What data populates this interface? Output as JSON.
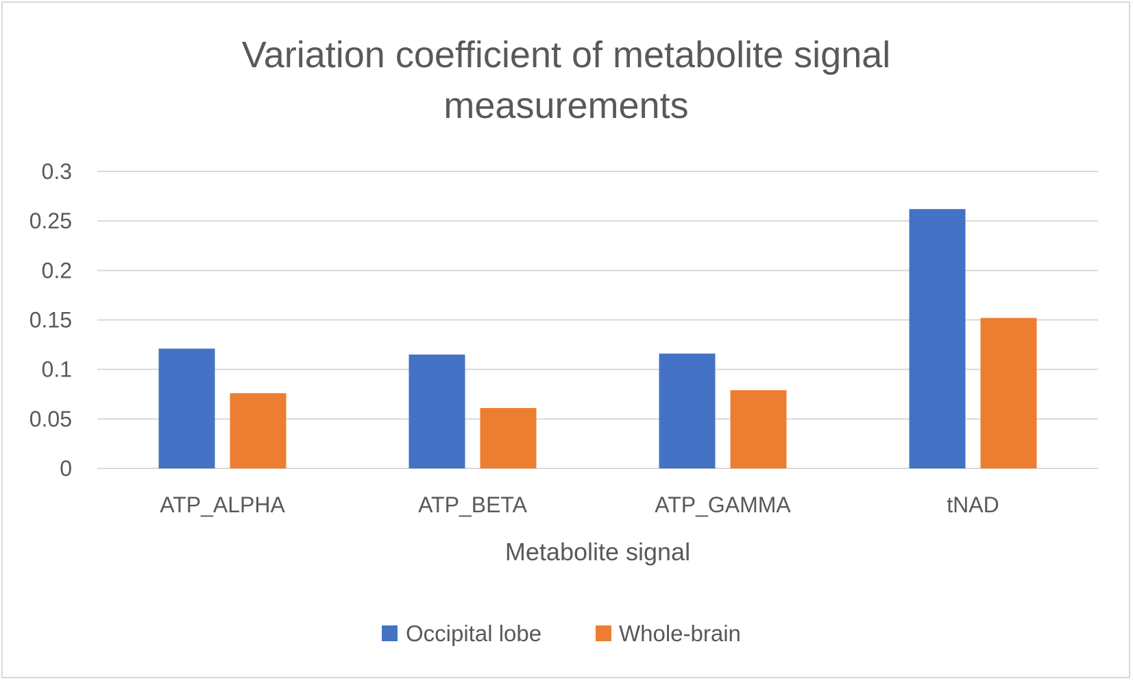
{
  "chart_data": {
    "type": "bar",
    "title_lines": [
      "Variation coefficient of metabolite signal",
      "measurements"
    ],
    "title": "Variation coefficient of metabolite signal measurements",
    "xlabel": "Metabolite signal",
    "ylabel": "",
    "categories": [
      "ATP_ALPHA",
      "ATP_BETA",
      "ATP_GAMMA",
      "tNAD"
    ],
    "series": [
      {
        "name": "Occipital lobe",
        "color": "#4472c4",
        "values": [
          0.121,
          0.115,
          0.116,
          0.262
        ]
      },
      {
        "name": "Whole-brain",
        "color": "#ed7d31",
        "values": [
          0.076,
          0.061,
          0.079,
          0.152
        ]
      }
    ],
    "ylim": [
      0,
      0.3
    ],
    "yticks": [
      "0",
      "0.05",
      "0.1",
      "0.15",
      "0.2",
      "0.25",
      "0.3"
    ],
    "ytick_values": [
      0,
      0.05,
      0.1,
      0.15,
      0.2,
      0.25,
      0.3
    ],
    "grid": true,
    "legend_position": "bottom"
  },
  "colors": {
    "gridline": "#d9d9d9",
    "text": "#595959"
  }
}
